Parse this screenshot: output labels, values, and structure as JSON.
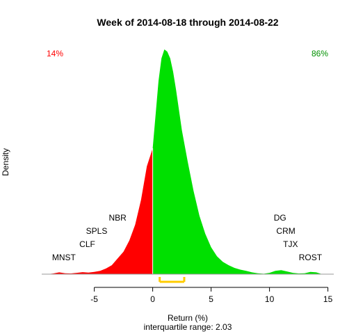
{
  "chart_data": {
    "type": "area",
    "title": "Week of 2014-08-18 through 2014-08-22",
    "xlabel": "Return (%)",
    "ylabel": "Density",
    "subtitle": "interquartile range: 2.03",
    "xlim": [
      -9.5,
      15.5
    ],
    "ylim": [
      0,
      1
    ],
    "x_ticks": [
      -5,
      0,
      5,
      10,
      15
    ],
    "split_at": 0,
    "colors": {
      "negative": "#ff0000",
      "positive": "#00e000",
      "iqr": "#ffcc00",
      "baseline": "#999999"
    },
    "percent_negative": "14%",
    "percent_positive": "86%",
    "iqr_range": [
      0.6,
      2.7
    ],
    "density": {
      "x": [
        -9.0,
        -8.5,
        -8.0,
        -7.5,
        -7.0,
        -6.5,
        -6.0,
        -5.5,
        -5.0,
        -4.5,
        -4.0,
        -3.5,
        -3.0,
        -2.5,
        -2.0,
        -1.5,
        -1.0,
        -0.5,
        0.0,
        0.25,
        0.5,
        0.75,
        1.0,
        1.25,
        1.5,
        1.75,
        2.0,
        2.5,
        3.0,
        3.5,
        4.0,
        4.5,
        5.0,
        5.5,
        6.0,
        6.5,
        7.0,
        7.5,
        8.0,
        8.5,
        9.0,
        9.5,
        10.0,
        10.5,
        11.0,
        11.5,
        12.0,
        12.5,
        13.0,
        13.5,
        14.0,
        14.5
      ],
      "y": [
        0.0,
        0.003,
        0.008,
        0.004,
        0.003,
        0.006,
        0.009,
        0.007,
        0.01,
        0.015,
        0.025,
        0.04,
        0.07,
        0.1,
        0.15,
        0.22,
        0.33,
        0.48,
        0.56,
        0.71,
        0.86,
        0.96,
        1.0,
        0.99,
        0.96,
        0.9,
        0.82,
        0.64,
        0.5,
        0.37,
        0.26,
        0.18,
        0.12,
        0.08,
        0.055,
        0.04,
        0.028,
        0.02,
        0.015,
        0.008,
        0.004,
        0.002,
        0.006,
        0.015,
        0.018,
        0.012,
        0.006,
        0.003,
        0.004,
        0.01,
        0.008,
        0.0
      ]
    },
    "annotations": [
      {
        "text": "MNST",
        "x": -7.6,
        "y": 0.062
      },
      {
        "text": "CLF",
        "x": -5.6,
        "y": 0.121
      },
      {
        "text": "SPLS",
        "x": -4.8,
        "y": 0.18
      },
      {
        "text": "NBR",
        "x": -3.0,
        "y": 0.239
      },
      {
        "text": "DG",
        "x": 10.9,
        "y": 0.239
      },
      {
        "text": "CRM",
        "x": 11.4,
        "y": 0.18
      },
      {
        "text": "TJX",
        "x": 11.8,
        "y": 0.121
      },
      {
        "text": "ROST",
        "x": 13.5,
        "y": 0.062
      }
    ]
  }
}
